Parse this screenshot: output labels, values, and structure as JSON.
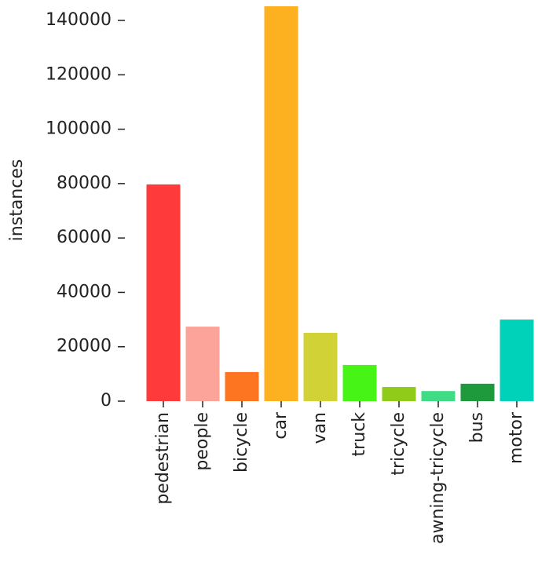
{
  "chart_data": {
    "type": "bar",
    "ylabel": "instances",
    "categories": [
      "pedestrian",
      "people",
      "bicycle",
      "car",
      "van",
      "truck",
      "tricycle",
      "awning-tricycle",
      "bus",
      "motor"
    ],
    "values": [
      79700,
      27400,
      10700,
      145200,
      25100,
      13300,
      5200,
      3700,
      6400,
      30000
    ],
    "colors": [
      "#fe3a3a",
      "#fca39a",
      "#fd7421",
      "#fdb120",
      "#d0d235",
      "#46f516",
      "#8fcb18",
      "#3ddc85",
      "#1e9a3c",
      "#00d2b9"
    ],
    "ylim": [
      0,
      145200
    ],
    "yticks": [
      0,
      20000,
      40000,
      60000,
      80000,
      100000,
      120000,
      140000
    ]
  }
}
